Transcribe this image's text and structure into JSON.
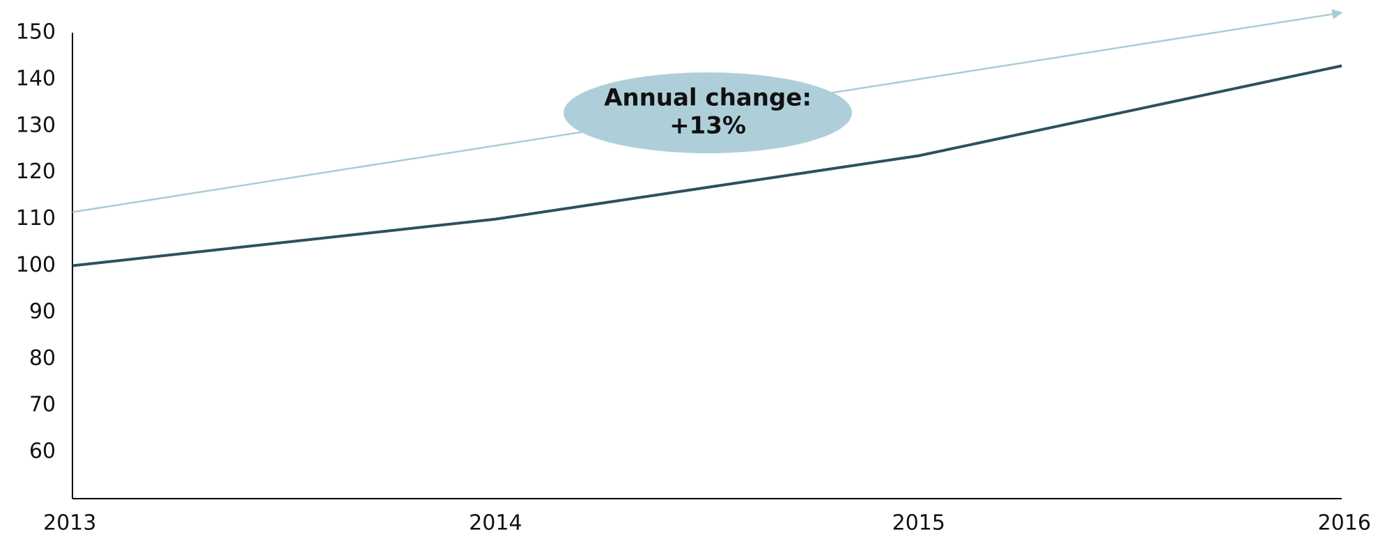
{
  "chart_data": {
    "type": "line",
    "categories": [
      "2013",
      "2014",
      "2015",
      "2016"
    ],
    "series": [
      {
        "color": "#2d5061",
        "values": [
          100,
          110,
          123.6,
          142.9
        ]
      }
    ],
    "trend": {
      "color": "#a8ccd8",
      "from": 111.5,
      "to": 154.3
    },
    "annotation": {
      "lines": [
        "Annual change:",
        "+13%"
      ],
      "color": "#aecfd9"
    },
    "ylim": [
      50,
      150
    ],
    "yticks": [
      60,
      70,
      80,
      90,
      100,
      110,
      120,
      130,
      140,
      150
    ],
    "grid": false
  }
}
